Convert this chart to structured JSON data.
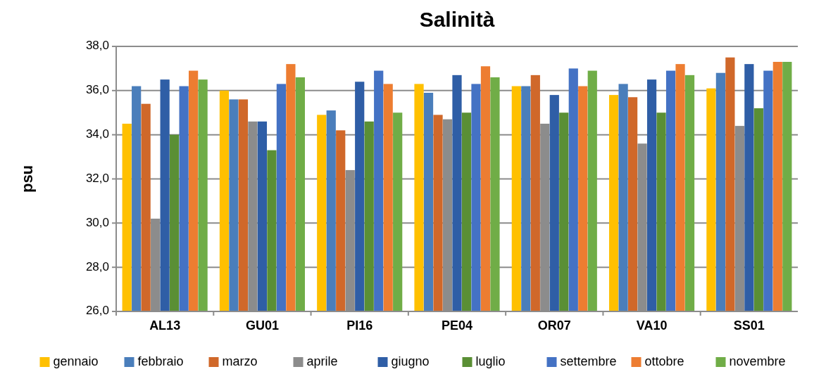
{
  "chart_data": {
    "type": "bar",
    "title": "Salinità",
    "ylabel": "psu",
    "categories": [
      "AL13",
      "GU01",
      "PI16",
      "PE04",
      "OR07",
      "VA10",
      "SS01"
    ],
    "series": [
      {
        "name": "gennaio",
        "color": "#ffc000",
        "values": [
          34.5,
          36.0,
          34.9,
          36.3,
          36.2,
          35.8,
          36.1
        ]
      },
      {
        "name": "febbraio",
        "color": "#4a7ebb",
        "values": [
          36.2,
          35.6,
          35.1,
          35.9,
          36.2,
          36.3,
          36.8
        ]
      },
      {
        "name": "marzo",
        "color": "#d0682a",
        "values": [
          35.4,
          35.6,
          34.2,
          34.9,
          36.7,
          35.7,
          37.5
        ]
      },
      {
        "name": "aprile",
        "color": "#8c8c8c",
        "values": [
          30.2,
          34.6,
          32.4,
          34.7,
          34.5,
          33.6,
          34.4
        ]
      },
      {
        "name": "giugno",
        "color": "#2f5ea6",
        "values": [
          36.5,
          34.6,
          36.4,
          36.7,
          35.8,
          36.5,
          37.2
        ]
      },
      {
        "name": "luglio",
        "color": "#5a8f35",
        "values": [
          34.0,
          33.3,
          34.6,
          35.0,
          35.0,
          35.0,
          35.2
        ]
      },
      {
        "name": "settembre",
        "color": "#4472c4",
        "values": [
          36.2,
          36.3,
          36.9,
          36.3,
          37.0,
          36.9,
          36.9
        ]
      },
      {
        "name": "ottobre",
        "color": "#ed7d31",
        "values": [
          36.9,
          37.2,
          36.3,
          37.1,
          36.2,
          37.2,
          37.3
        ]
      },
      {
        "name": "novembre",
        "color": "#70ad47",
        "values": [
          36.5,
          36.6,
          35.0,
          36.6,
          36.9,
          36.7,
          37.3
        ]
      }
    ],
    "ylim": [
      26,
      38
    ],
    "yticks": [
      {
        "value": 26,
        "label": "26,0"
      },
      {
        "value": 28,
        "label": "28,0"
      },
      {
        "value": 30,
        "label": "30,0"
      },
      {
        "value": 32,
        "label": "32,0"
      },
      {
        "value": 34,
        "label": "34,0"
      },
      {
        "value": 36,
        "label": "36,0"
      },
      {
        "value": 38,
        "label": "38,0"
      }
    ],
    "grid": "y",
    "legend": "bottom"
  }
}
